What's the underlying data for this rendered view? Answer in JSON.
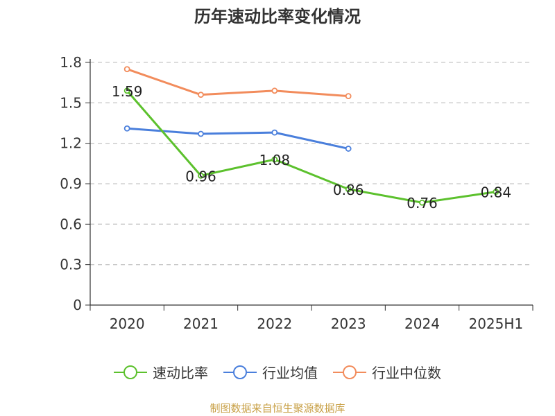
{
  "title": "历年速动比率变化情况",
  "source_text": "制图数据来自恒生聚源数据库",
  "chart_data": {
    "type": "line",
    "categories": [
      "2020",
      "2021",
      "2022",
      "2023",
      "2024",
      "2025H1"
    ],
    "ylim": [
      0,
      1.8
    ],
    "yticks": [
      "0",
      "0.3",
      "0.6",
      "0.9",
      "1.2",
      "1.5",
      "1.8"
    ],
    "grid": true,
    "legend_position": "bottom",
    "series": [
      {
        "name": "速动比率",
        "color": "#5cc12d",
        "values": [
          1.59,
          0.96,
          1.08,
          0.86,
          0.76,
          0.84
        ],
        "labels": [
          "1.59",
          "0.96",
          "1.08",
          "0.86",
          "0.76",
          "0.84"
        ]
      },
      {
        "name": "行业均值",
        "color": "#4a7fdc",
        "values": [
          1.31,
          1.27,
          1.28,
          1.16,
          null,
          null
        ]
      },
      {
        "name": "行业中位数",
        "color": "#f28c5c",
        "values": [
          1.75,
          1.56,
          1.59,
          1.55,
          null,
          null
        ]
      }
    ]
  }
}
